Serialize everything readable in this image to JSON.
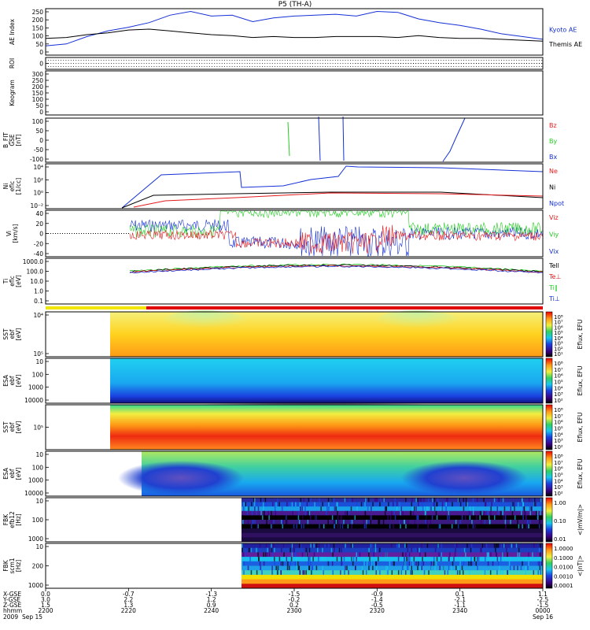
{
  "title": "P5 (TH-A)",
  "colors": {
    "red": "#e41a1c",
    "green": "#22cc22",
    "blue": "#1530d6",
    "black": "#000000",
    "yellow": "#f2e600",
    "roi_red": "#e00000"
  },
  "chart_data": [
    {
      "type": "line",
      "name": "ae",
      "ylabel": [
        "AE Index"
      ],
      "ylim": [
        0,
        250
      ],
      "yticks": [
        "0",
        "50",
        "100",
        "150",
        "200",
        "250"
      ],
      "x_min": [
        2200,
        2220,
        2240,
        2300,
        2320,
        2340,
        2400
      ],
      "series": [
        {
          "name": "Kyoto AE",
          "color": "#1530d6",
          "values": [
            50,
            60,
            100,
            130,
            150,
            175,
            215,
            235,
            210,
            215,
            180,
            200,
            210,
            215,
            220,
            210,
            235,
            230,
            195,
            175,
            160,
            140,
            115,
            100,
            85
          ]
        },
        {
          "name": "Themis AE",
          "color": "#000000",
          "values": [
            90,
            95,
            110,
            120,
            135,
            140,
            130,
            120,
            110,
            105,
            95,
            100,
            95,
            95,
            100,
            100,
            100,
            95,
            105,
            95,
            90,
            90,
            85,
            80,
            75
          ]
        }
      ]
    },
    {
      "type": "table",
      "name": "roi",
      "ylabel": [
        "ROI"
      ],
      "yticks": [
        "0"
      ]
    },
    {
      "type": "line",
      "name": "keogram",
      "ylabel": [
        "Keogram"
      ],
      "ylim": [
        0,
        300
      ],
      "yticks": [
        "0",
        "50",
        "100",
        "150",
        "200",
        "250",
        "300"
      ]
    },
    {
      "type": "line",
      "name": "bfit",
      "ylabel": [
        "B_FIT",
        "GSE",
        "[nT]"
      ],
      "ylim": [
        -100,
        100
      ],
      "yticks": [
        "-100",
        "-50",
        "0",
        "50",
        "100"
      ],
      "series": [
        {
          "name": "Bz",
          "color": "#e41a1c"
        },
        {
          "name": "By",
          "color": "#22cc22"
        },
        {
          "name": "Bx",
          "color": "#1530d6"
        }
      ]
    },
    {
      "type": "line",
      "name": "ni",
      "ylabel": [
        "Ni",
        "eflc",
        "[1/cc]"
      ],
      "yticks_log": [
        "10⁻²",
        "10⁰",
        "10²",
        "10⁴"
      ],
      "series": [
        {
          "name": "Ne",
          "color": "#e41a1c"
        },
        {
          "name": "Ni",
          "color": "#000000"
        },
        {
          "name": "Npot",
          "color": "#1530d6"
        }
      ]
    },
    {
      "type": "line",
      "name": "vi",
      "ylabel": [
        "Vi",
        "[km/s]"
      ],
      "ylim": [
        -50,
        50
      ],
      "yticks": [
        "-40",
        "-20",
        "0",
        "20",
        "40"
      ],
      "series": [
        {
          "name": "Viz",
          "color": "#e41a1c"
        },
        {
          "name": "Viy",
          "color": "#22cc22"
        },
        {
          "name": "Vix",
          "color": "#1530d6"
        }
      ]
    },
    {
      "type": "line",
      "name": "ti",
      "ylabel": [
        "Ti",
        "eflc",
        "[eV]"
      ],
      "yticks": [
        "0.1",
        "1.0",
        "10.0",
        "100.0",
        "1000.0"
      ],
      "series": [
        {
          "name": "Tell",
          "color": "#000000"
        },
        {
          "name": "Te⊥",
          "color": "#e41a1c"
        },
        {
          "name": "Ti‖",
          "color": "#22cc22"
        },
        {
          "name": "Ti⊥",
          "color": "#1530d6"
        }
      ]
    },
    {
      "type": "heatmap",
      "name": "sst-e",
      "ylabel": [
        "SST",
        "ebf",
        "[eV]"
      ],
      "yticks": [
        "10⁵",
        "10⁴"
      ],
      "colorbar": {
        "label": "Eflux, EFU",
        "ticks": [
          "10⁸",
          "10⁷",
          "10⁶",
          "10⁵",
          "10⁴",
          "10³",
          "10²",
          "10¹"
        ]
      }
    },
    {
      "type": "heatmap",
      "name": "esa-e",
      "ylabel": [
        "ESA",
        "ebf",
        "[eV]"
      ],
      "yticks": [
        "10000",
        "1000",
        "100",
        "10"
      ],
      "colorbar": {
        "label": "Eflux, EFU",
        "ticks": [
          "10⁸",
          "10⁷",
          "10⁶",
          "10⁵",
          "10⁴",
          "10³",
          "10²"
        ]
      }
    },
    {
      "type": "heatmap",
      "name": "sst-i",
      "ylabel": [
        "SST",
        "ebf",
        "[eV]"
      ],
      "yticks": [
        "10⁵"
      ],
      "colorbar": {
        "label": "Eflux, EFU",
        "ticks": [
          "10⁸",
          "10⁷",
          "10⁶",
          "10⁵",
          "10⁴",
          "10³",
          "10²"
        ]
      }
    },
    {
      "type": "heatmap",
      "name": "esa-i",
      "ylabel": [
        "ESA",
        "ebf",
        "[eV]"
      ],
      "yticks": [
        "10000",
        "1000",
        "100",
        "10"
      ],
      "colorbar": {
        "label": "Eflux, EFU",
        "ticks": [
          "10⁸",
          "10⁷",
          "10⁶",
          "10⁵",
          "10⁴",
          "10³",
          "10²"
        ]
      }
    },
    {
      "type": "heatmap",
      "name": "fbk-e",
      "ylabel": [
        "FBK",
        "efb12",
        "[Hz]"
      ],
      "yticks": [
        "1000",
        "100",
        "10"
      ],
      "colorbar": {
        "label": "<|mV/m|>",
        "ticks": [
          "1.00",
          "0.10",
          "0.01"
        ]
      }
    },
    {
      "type": "heatmap",
      "name": "fbk-b",
      "ylabel": [
        "FBK",
        "scm1",
        "[Hz]"
      ],
      "yticks": [
        "1000",
        "200",
        "10"
      ],
      "colorbar": {
        "label": "<|nT|>",
        "ticks": [
          "1.0000",
          "0.1000",
          "0.0100",
          "0.0010",
          "0.0001"
        ]
      }
    }
  ],
  "xaxis": {
    "row_labels": [
      "X-GSE",
      "Y-GSE",
      "Z-GSE",
      "hhmm",
      "2009"
    ],
    "columns": [
      {
        "x": "0.0",
        "y": "3.0",
        "z": "1.5",
        "t": "2200",
        "d": "Sep 15"
      },
      {
        "x": "-0.7",
        "y": "2.2",
        "z": "1.3",
        "t": "2220",
        "d": ""
      },
      {
        "x": "-1.3",
        "y": "1.2",
        "z": "0.9",
        "t": "2240",
        "d": ""
      },
      {
        "x": "-1.5",
        "y": "-0.2",
        "z": "0.2",
        "t": "2300",
        "d": ""
      },
      {
        "x": "-0.9",
        "y": "-1.4",
        "z": "-0.5",
        "t": "2320",
        "d": ""
      },
      {
        "x": "0.1",
        "y": "-2.1",
        "z": "-1.1",
        "t": "2340",
        "d": ""
      },
      {
        "x": "1.1",
        "y": "-2.5",
        "z": "-1.5",
        "t": "0000",
        "d": "Sep 16"
      }
    ]
  }
}
